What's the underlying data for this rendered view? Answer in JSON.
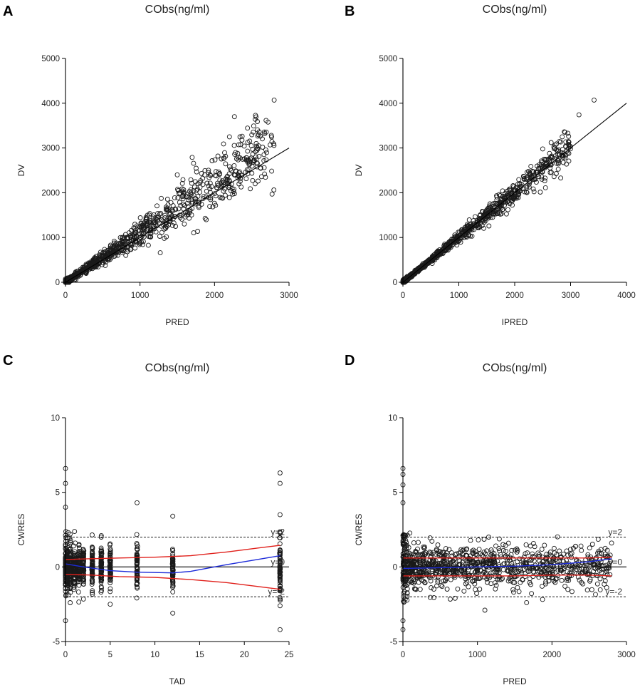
{
  "chart_data": [
    {
      "panel": "A",
      "type": "scatter",
      "title": "CObs(ng/ml)",
      "xlabel": "PRED",
      "ylabel": "DV",
      "xlim": [
        0,
        3000
      ],
      "ylim": [
        0,
        5000
      ],
      "xticks": [
        0,
        1000,
        2000,
        3000
      ],
      "yticks": [
        0,
        1000,
        2000,
        3000,
        4000,
        5000
      ],
      "reference_line": {
        "type": "identity",
        "from": [
          0,
          0
        ],
        "to": [
          3000,
          3000
        ]
      },
      "highlight_points": [
        [
          2800,
          4070
        ],
        [
          2550,
          3730
        ],
        [
          2200,
          3250
        ],
        [
          1700,
          2790
        ],
        [
          2600,
          3360
        ],
        [
          1500,
          2400
        ],
        [
          2700,
          2900
        ]
      ],
      "cloud": {
        "n": 950,
        "xmax": 2800,
        "slope": 1.1,
        "spread_frac": 0.14,
        "min_spread": 30,
        "seed": 11
      }
    },
    {
      "panel": "B",
      "type": "scatter",
      "title": "CObs(ng/ml)",
      "xlabel": "IPRED",
      "ylabel": "DV",
      "xlim": [
        0,
        4000
      ],
      "ylim": [
        0,
        5000
      ],
      "xticks": [
        0,
        1000,
        2000,
        3000,
        4000
      ],
      "yticks": [
        0,
        1000,
        2000,
        3000,
        4000,
        5000
      ],
      "reference_line": {
        "type": "identity",
        "from": [
          0,
          0
        ],
        "to": [
          4000,
          4000
        ]
      },
      "highlight_points": [
        [
          3420,
          4070
        ],
        [
          3150,
          3740
        ],
        [
          2950,
          3330
        ],
        [
          2850,
          3250
        ],
        [
          2900,
          3350
        ],
        [
          2500,
          2980
        ],
        [
          2650,
          2800
        ]
      ],
      "cloud": {
        "n": 950,
        "xmax": 3000,
        "slope": 1.0,
        "spread_frac": 0.06,
        "min_spread": 20,
        "seed": 23
      }
    },
    {
      "panel": "C",
      "type": "scatter",
      "title": "CObs(ng/ml)",
      "xlabel": "TAD",
      "ylabel": "CWRES",
      "xlim": [
        0,
        25
      ],
      "ylim": [
        -5,
        10
      ],
      "xticks": [
        0,
        5,
        10,
        15,
        20,
        25
      ],
      "yticks": [
        -5,
        0,
        5,
        10
      ],
      "hlines": [
        {
          "y": 2,
          "style": "dashed",
          "label": "y=2"
        },
        {
          "y": 0,
          "style": "solid",
          "label": "y=0"
        },
        {
          "y": -2,
          "style": "dashed",
          "label": "y=-2"
        }
      ],
      "time_columns": [
        0,
        0.25,
        0.5,
        1,
        1.5,
        2,
        3,
        4,
        5,
        8,
        12,
        24
      ],
      "highlight_points": [
        [
          0,
          6.6
        ],
        [
          0,
          5.6
        ],
        [
          0,
          4.0
        ],
        [
          0,
          -3.6
        ],
        [
          8,
          4.3
        ],
        [
          12,
          3.4
        ],
        [
          12,
          -3.1
        ],
        [
          24,
          6.3
        ],
        [
          24,
          5.6
        ],
        [
          24,
          3.5
        ],
        [
          24,
          -2.6
        ],
        [
          24,
          -4.2
        ],
        [
          0.3,
          2.3
        ],
        [
          5,
          -2.5
        ],
        [
          4,
          2.0
        ]
      ],
      "smooth_blue": [
        [
          0,
          0.2
        ],
        [
          2,
          0.0
        ],
        [
          5,
          -0.25
        ],
        [
          8,
          -0.35
        ],
        [
          12,
          -0.4
        ],
        [
          14,
          -0.3
        ],
        [
          18,
          0.15
        ],
        [
          22,
          0.55
        ],
        [
          24,
          0.75
        ]
      ],
      "upper_red": [
        [
          0,
          0.5
        ],
        [
          3,
          0.55
        ],
        [
          6,
          0.6
        ],
        [
          10,
          0.65
        ],
        [
          14,
          0.75
        ],
        [
          18,
          1.0
        ],
        [
          22,
          1.3
        ],
        [
          24,
          1.45
        ]
      ],
      "lower_red": [
        [
          0,
          -0.5
        ],
        [
          3,
          -0.55
        ],
        [
          6,
          -0.65
        ],
        [
          10,
          -0.7
        ],
        [
          14,
          -0.85
        ],
        [
          18,
          -1.05
        ],
        [
          22,
          -1.35
        ],
        [
          24,
          -1.5
        ]
      ],
      "cloud": {
        "n": 900,
        "seed": 37
      }
    },
    {
      "panel": "D",
      "type": "scatter",
      "title": "CObs(ng/ml)",
      "xlabel": "PRED",
      "ylabel": "CWRES",
      "xlim": [
        0,
        3000
      ],
      "ylim": [
        -5,
        10
      ],
      "xticks": [
        0,
        1000,
        2000,
        3000
      ],
      "yticks": [
        -5,
        0,
        5,
        10
      ],
      "hlines": [
        {
          "y": 2,
          "style": "dashed",
          "label": "y=2"
        },
        {
          "y": 0,
          "style": "solid",
          "label": "y=0"
        },
        {
          "y": -2,
          "style": "dashed",
          "label": "y=-2"
        }
      ],
      "highlight_points": [
        [
          0,
          6.6
        ],
        [
          0,
          6.2
        ],
        [
          0,
          5.5
        ],
        [
          0,
          4.3
        ],
        [
          0,
          -4.2
        ],
        [
          0,
          -3.6
        ],
        [
          1100,
          -2.9
        ],
        [
          2800,
          1.6
        ],
        [
          2750,
          0.7
        ],
        [
          2500,
          -0.45
        ],
        [
          1150,
          2.0
        ],
        [
          700,
          -2.1
        ]
      ],
      "smooth_blue": [
        [
          0,
          -0.1
        ],
        [
          500,
          -0.05
        ],
        [
          1000,
          0.0
        ],
        [
          1500,
          0.05
        ],
        [
          2000,
          0.15
        ],
        [
          2500,
          0.35
        ],
        [
          2800,
          0.55
        ]
      ],
      "upper_red": [
        [
          0,
          0.6
        ],
        [
          500,
          0.6
        ],
        [
          1000,
          0.6
        ],
        [
          1500,
          0.6
        ],
        [
          2000,
          0.6
        ],
        [
          2500,
          0.6
        ],
        [
          2800,
          0.65
        ]
      ],
      "lower_red": [
        [
          0,
          -0.6
        ],
        [
          500,
          -0.6
        ],
        [
          1000,
          -0.6
        ],
        [
          1500,
          -0.6
        ],
        [
          2000,
          -0.55
        ],
        [
          2500,
          -0.55
        ],
        [
          2800,
          -0.6
        ]
      ],
      "cloud": {
        "n": 1000,
        "xmax": 2800,
        "seed": 53
      }
    }
  ]
}
